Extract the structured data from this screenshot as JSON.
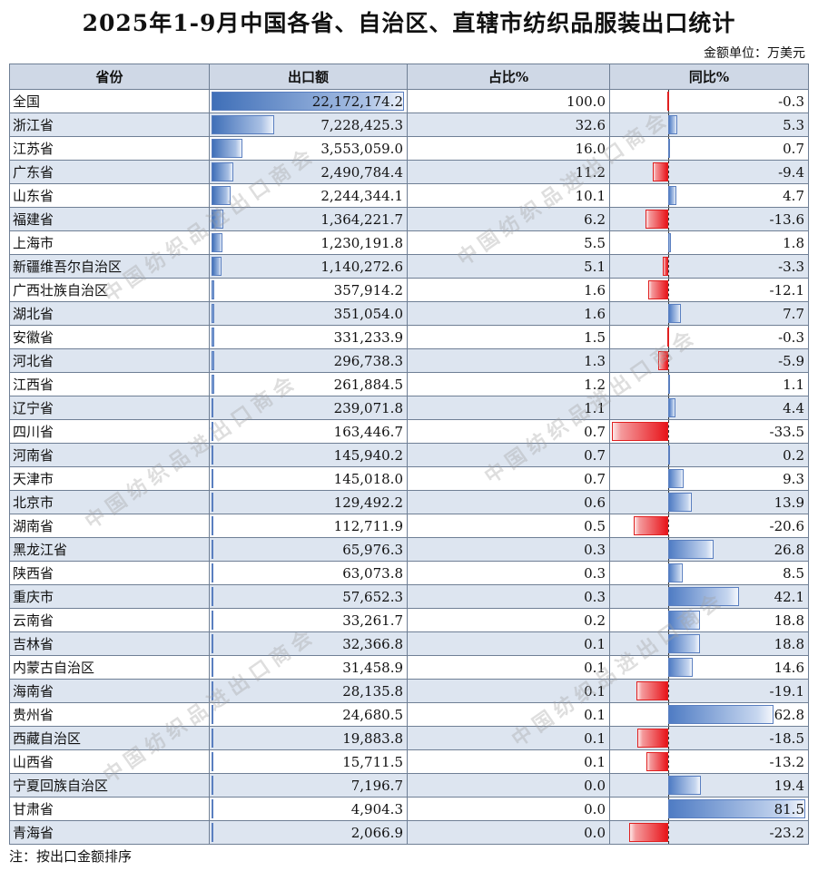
{
  "title": "2025年1-9月中国各省、自治区、直辖市纺织品服装出口统计",
  "unit": "金额单位：万美元",
  "note": "注：按出口金额排序",
  "watermark": "中国纺织品进出口商会",
  "chart_data": {
    "type": "table",
    "columns": [
      "省份",
      "出口额",
      "占比%",
      "同比%"
    ],
    "rows": [
      [
        "全国",
        "22,172,174.2",
        "100.0",
        "-0.3"
      ],
      [
        "浙江省",
        "7,228,425.3",
        "32.6",
        "5.3"
      ],
      [
        "江苏省",
        "3,553,059.0",
        "16.0",
        "0.7"
      ],
      [
        "广东省",
        "2,490,784.4",
        "11.2",
        "-9.4"
      ],
      [
        "山东省",
        "2,244,344.1",
        "10.1",
        "4.7"
      ],
      [
        "福建省",
        "1,364,221.7",
        "6.2",
        "-13.6"
      ],
      [
        "上海市",
        "1,230,191.8",
        "5.5",
        "1.8"
      ],
      [
        "新疆维吾尔自治区",
        "1,140,272.6",
        "5.1",
        "-3.3"
      ],
      [
        "广西壮族自治区",
        "357,914.2",
        "1.6",
        "-12.1"
      ],
      [
        "湖北省",
        "351,054.0",
        "1.6",
        "7.7"
      ],
      [
        "安徽省",
        "331,233.9",
        "1.5",
        "-0.3"
      ],
      [
        "河北省",
        "296,738.3",
        "1.3",
        "-5.9"
      ],
      [
        "江西省",
        "261,884.5",
        "1.2",
        "1.1"
      ],
      [
        "辽宁省",
        "239,071.8",
        "1.1",
        "4.4"
      ],
      [
        "四川省",
        "163,446.7",
        "0.7",
        "-33.5"
      ],
      [
        "河南省",
        "145,940.2",
        "0.7",
        "0.2"
      ],
      [
        "天津市",
        "145,018.0",
        "0.7",
        "9.3"
      ],
      [
        "北京市",
        "129,492.2",
        "0.6",
        "13.9"
      ],
      [
        "湖南省",
        "112,711.9",
        "0.5",
        "-20.6"
      ],
      [
        "黑龙江省",
        "65,976.3",
        "0.3",
        "26.8"
      ],
      [
        "陕西省",
        "63,073.8",
        "0.3",
        "8.5"
      ],
      [
        "重庆市",
        "57,652.3",
        "0.3",
        "42.1"
      ],
      [
        "云南省",
        "33,261.7",
        "0.2",
        "18.8"
      ],
      [
        "吉林省",
        "32,366.8",
        "0.1",
        "18.8"
      ],
      [
        "内蒙古自治区",
        "31,458.9",
        "0.1",
        "14.6"
      ],
      [
        "海南省",
        "28,135.8",
        "0.1",
        "-19.1"
      ],
      [
        "贵州省",
        "24,680.5",
        "0.1",
        "62.8"
      ],
      [
        "西藏自治区",
        "19,883.8",
        "0.1",
        "-18.5"
      ],
      [
        "山西省",
        "15,711.5",
        "0.1",
        "-13.2"
      ],
      [
        "宁夏回族自治区",
        "7,196.7",
        "0.0",
        "19.4"
      ],
      [
        "甘肃省",
        "4,904.3",
        "0.0",
        "81.5"
      ],
      [
        "青海省",
        "2,066.9",
        "0.0",
        "-23.2"
      ]
    ]
  }
}
